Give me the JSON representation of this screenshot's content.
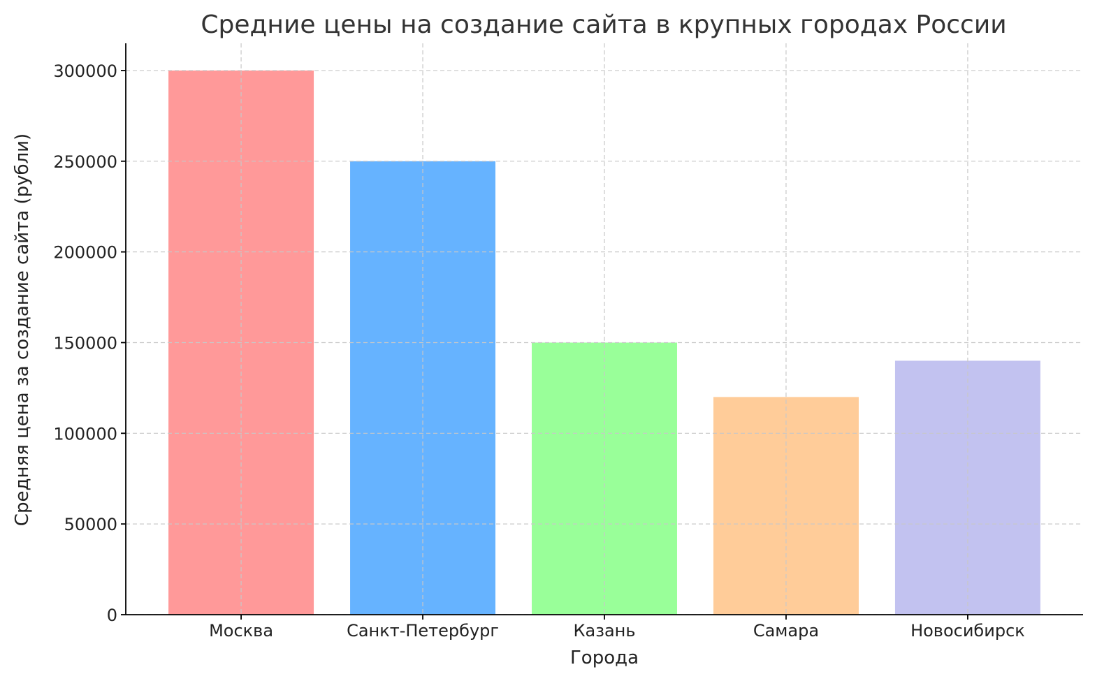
{
  "chart_data": {
    "type": "bar",
    "title": "Средние цены на создание сайта в крупных городах России",
    "xlabel": "Города",
    "ylabel": "Средняя цена за создание сайта (рубли)",
    "categories": [
      "Москва",
      "Санкт-Петербург",
      "Казань",
      "Самара",
      "Новосибирск"
    ],
    "values": [
      300000,
      250000,
      150000,
      120000,
      140000
    ],
    "colors": [
      "#ff9999",
      "#66b3ff",
      "#99ff99",
      "#ffcc99",
      "#c2c2f0"
    ],
    "ylim": [
      0,
      315000
    ],
    "yticks": [
      0,
      50000,
      100000,
      150000,
      200000,
      250000,
      300000
    ],
    "grid": true,
    "legend": "none"
  }
}
